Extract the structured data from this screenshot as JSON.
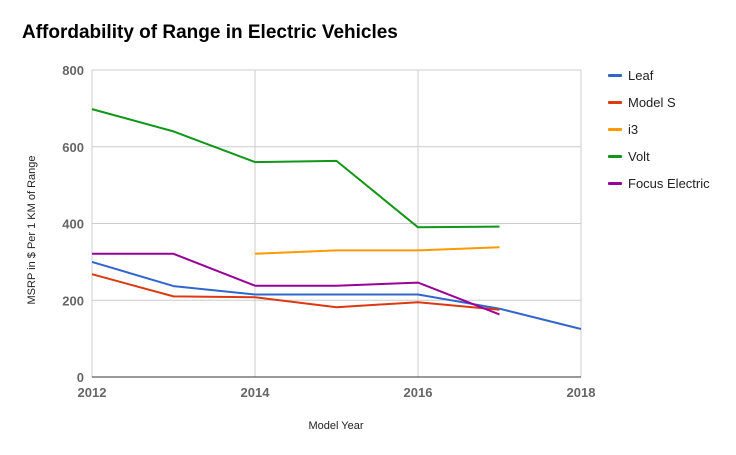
{
  "chart_data": {
    "type": "line",
    "title": "Affordability of Range in Electric Vehicles",
    "xlabel": "Model Year",
    "ylabel": "MSRP in $ Per 1 KM of Range",
    "xlim": [
      2012,
      2018
    ],
    "ylim": [
      0,
      800
    ],
    "x_ticks": [
      "2012",
      "2014",
      "2016",
      "2018"
    ],
    "y_ticks": [
      "0",
      "200",
      "400",
      "600",
      "800"
    ],
    "x_tick_values": [
      2012,
      2014,
      2016,
      2018
    ],
    "y_tick_values": [
      0,
      200,
      400,
      600,
      800
    ],
    "x_grid_values": [
      2012,
      2014,
      2016,
      2018
    ],
    "legend_position": "right",
    "series": [
      {
        "name": "Leaf",
        "color": "#3366cc",
        "x": [
          2012,
          2013,
          2014,
          2015,
          2016,
          2017,
          2018
        ],
        "y": [
          300,
          237,
          215,
          215,
          215,
          178,
          125
        ]
      },
      {
        "name": "Model S",
        "color": "#dc3912",
        "x": [
          2012,
          2013,
          2014,
          2015,
          2016,
          2017
        ],
        "y": [
          268,
          210,
          208,
          182,
          195,
          175
        ]
      },
      {
        "name": "i3",
        "color": "#ff9900",
        "x": [
          2014,
          2015,
          2016,
          2017
        ],
        "y": [
          321,
          330,
          330,
          338
        ]
      },
      {
        "name": "Volt",
        "color": "#109618",
        "x": [
          2012,
          2013,
          2014,
          2015,
          2016,
          2017
        ],
        "y": [
          698,
          640,
          560,
          563,
          390,
          392
        ]
      },
      {
        "name": "Focus Electric",
        "color": "#990099",
        "x": [
          2012,
          2013,
          2014,
          2015,
          2016,
          2017
        ],
        "y": [
          321,
          321,
          238,
          238,
          246,
          163
        ]
      }
    ]
  }
}
